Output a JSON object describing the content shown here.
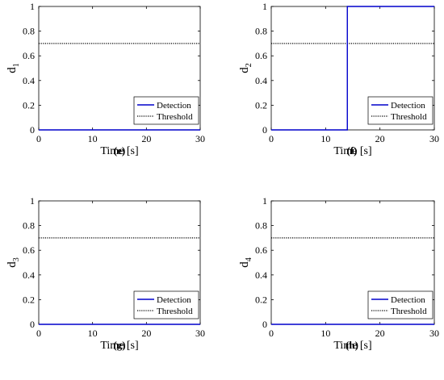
{
  "chart_data": [
    {
      "type": "line",
      "panel": "(e)",
      "ylabel_main": "d",
      "ylabel_sub": "1",
      "xlabel": "Time [s]",
      "xlim": [
        0,
        30
      ],
      "ylim": [
        0,
        1
      ],
      "xticks": [
        "0",
        "10",
        "20",
        "30"
      ],
      "yticks": [
        "0",
        "0.2",
        "0.4",
        "0.6",
        "0.8",
        "1"
      ],
      "grid": false,
      "legend_position": "bottom-right",
      "series": [
        {
          "name": "Detection",
          "style": "solid",
          "color": "#0000cc",
          "x": [
            0,
            30
          ],
          "y": [
            0,
            0
          ]
        },
        {
          "name": "Threshold",
          "style": "dotted",
          "color": "#000000",
          "x": [
            0,
            30
          ],
          "y": [
            0.7,
            0.7
          ]
        }
      ]
    },
    {
      "type": "line",
      "panel": "(f)",
      "ylabel_main": "d",
      "ylabel_sub": "2",
      "xlabel": "Time [s]",
      "xlim": [
        0,
        30
      ],
      "ylim": [
        0,
        1
      ],
      "xticks": [
        "0",
        "10",
        "20",
        "30"
      ],
      "yticks": [
        "0",
        "0.2",
        "0.4",
        "0.6",
        "0.8",
        "1"
      ],
      "grid": false,
      "legend_position": "bottom-right",
      "series": [
        {
          "name": "Detection",
          "style": "solid",
          "color": "#0000cc",
          "x": [
            0,
            14,
            14,
            30
          ],
          "y": [
            0,
            0,
            1,
            1
          ]
        },
        {
          "name": "Threshold",
          "style": "dotted",
          "color": "#000000",
          "x": [
            0,
            30
          ],
          "y": [
            0.7,
            0.7
          ]
        }
      ]
    },
    {
      "type": "line",
      "panel": "(g)",
      "ylabel_main": "d",
      "ylabel_sub": "3",
      "xlabel": "Time [s]",
      "xlim": [
        0,
        30
      ],
      "ylim": [
        0,
        1
      ],
      "xticks": [
        "0",
        "10",
        "20",
        "30"
      ],
      "yticks": [
        "0",
        "0.2",
        "0.4",
        "0.6",
        "0.8",
        "1"
      ],
      "grid": false,
      "legend_position": "bottom-right",
      "series": [
        {
          "name": "Detection",
          "style": "solid",
          "color": "#0000cc",
          "x": [
            0,
            30
          ],
          "y": [
            0,
            0
          ]
        },
        {
          "name": "Threshold",
          "style": "dotted",
          "color": "#000000",
          "x": [
            0,
            30
          ],
          "y": [
            0.7,
            0.7
          ]
        }
      ]
    },
    {
      "type": "line",
      "panel": "(h)",
      "ylabel_main": "d",
      "ylabel_sub": "4",
      "xlabel": "Time [s]",
      "xlim": [
        0,
        30
      ],
      "ylim": [
        0,
        1
      ],
      "xticks": [
        "0",
        "10",
        "20",
        "30"
      ],
      "yticks": [
        "0",
        "0.2",
        "0.4",
        "0.6",
        "0.8",
        "1"
      ],
      "grid": false,
      "legend_position": "bottom-right",
      "series": [
        {
          "name": "Detection",
          "style": "solid",
          "color": "#0000cc",
          "x": [
            0,
            30
          ],
          "y": [
            0,
            0
          ]
        },
        {
          "name": "Threshold",
          "style": "dotted",
          "color": "#000000",
          "x": [
            0,
            30
          ],
          "y": [
            0.7,
            0.7
          ]
        }
      ]
    }
  ]
}
